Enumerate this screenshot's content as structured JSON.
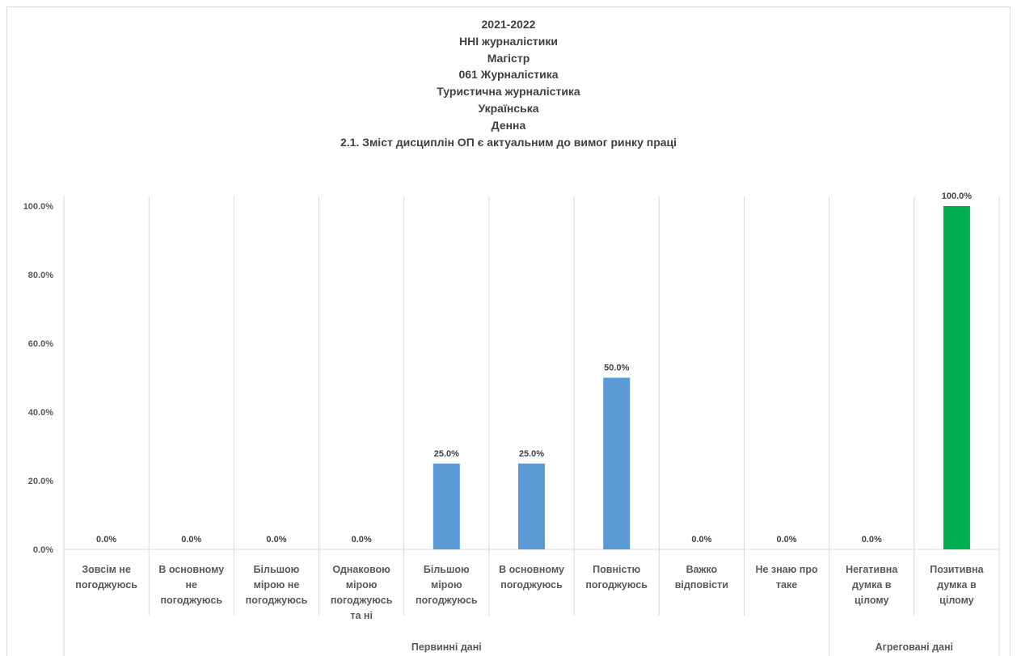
{
  "chart_data": {
    "type": "bar",
    "title_lines": [
      "2021-2022",
      "ННІ журналістики",
      "Магістр",
      "061 Журналістика",
      "Туристична журналістика",
      "Українська",
      "Денна",
      "2.1. Зміст дисциплін ОП є актуальним до вимог ринку праці"
    ],
    "categories": [
      [
        "Зовсім не",
        "погоджуюсь"
      ],
      [
        "В основному",
        "не",
        "погоджуюсь"
      ],
      [
        "Більшою",
        "мірою не",
        "погоджуюсь"
      ],
      [
        "Однаковою",
        "мірою",
        "погоджуюсь",
        "та ні"
      ],
      [
        "Більшою",
        "мірою",
        "погоджуюсь"
      ],
      [
        "В основному",
        "погоджуюсь"
      ],
      [
        "Повністю",
        "погоджуюсь"
      ],
      [
        "Важко",
        "відповісти"
      ],
      [
        "Не знаю про",
        "таке"
      ],
      [
        "Негативна",
        "думка в",
        "цілому"
      ],
      [
        "Позитивна",
        "думка в",
        "цілому"
      ]
    ],
    "values": [
      0,
      0,
      0,
      0,
      25,
      25,
      50,
      0,
      0,
      0,
      100
    ],
    "data_labels": [
      "0.0%",
      "0.0%",
      "0.0%",
      "0.0%",
      "25.0%",
      "25.0%",
      "50.0%",
      "0.0%",
      "0.0%",
      "0.0%",
      "100.0%"
    ],
    "groups": [
      {
        "label": "Первинні дані",
        "start": 0,
        "end": 8
      },
      {
        "label": "Агреговані дані",
        "start": 9,
        "end": 10
      }
    ],
    "y_ticks": [
      "0.0%",
      "20.0%",
      "40.0%",
      "60.0%",
      "80.0%",
      "100.0%"
    ],
    "ylim": [
      0,
      100
    ],
    "bar_colors": [
      "#5b9bd5",
      "#5b9bd5",
      "#5b9bd5",
      "#5b9bd5",
      "#5b9bd5",
      "#5b9bd5",
      "#5b9bd5",
      "#5b9bd5",
      "#5b9bd5",
      "#5b9bd5",
      "#00b050"
    ],
    "gridlines": "vertical category separators"
  }
}
